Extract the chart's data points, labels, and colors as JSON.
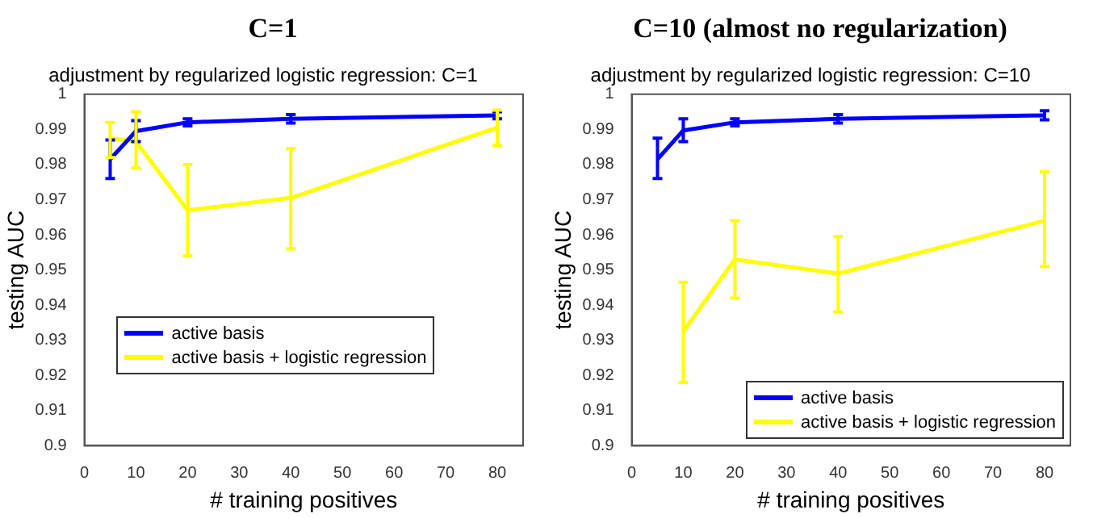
{
  "chart_data": [
    {
      "type": "line",
      "title": "C=1",
      "subtitle": "adjustment by regularized logistic regression: C=1",
      "xlabel": "# training positives",
      "ylabel": "testing AUC",
      "x": [
        5,
        10,
        20,
        40,
        80
      ],
      "xlim": [
        0,
        85
      ],
      "ylim": [
        0.9,
        1
      ],
      "xticks": [
        0,
        10,
        20,
        30,
        40,
        50,
        60,
        70,
        80
      ],
      "yticks": [
        0.9,
        0.91,
        0.92,
        0.93,
        0.94,
        0.95,
        0.96,
        0.97,
        0.98,
        0.99,
        1
      ],
      "grid": false,
      "legend": "bottom left",
      "series": [
        {
          "name": "active basis",
          "color": "#0000ff",
          "values": [
            0.9815,
            0.9895,
            0.992,
            0.993,
            0.994
          ],
          "errors": [
            [
              0.976,
              0.987
            ],
            [
              0.9865,
              0.9925
            ],
            [
              0.991,
              0.993
            ],
            [
              0.9918,
              0.9942
            ],
            [
              0.993,
              0.995
            ]
          ]
        },
        {
          "name": "active basis + logistic regression",
          "color": "#ffff00",
          "values": [
            0.9875,
            0.9865,
            0.967,
            0.9705,
            0.9905
          ],
          "errors": [
            [
              0.982,
              0.992
            ],
            [
              0.979,
              0.995
            ],
            [
              0.954,
              0.98
            ],
            [
              0.956,
              0.9845
            ],
            [
              0.9855,
              0.9955
            ]
          ]
        }
      ]
    },
    {
      "type": "line",
      "title": "C=10 (almost no regularization)",
      "subtitle": "adjustment by regularized logistic regression: C=10",
      "xlabel": "# training positives",
      "ylabel": "testing AUC",
      "x": [
        5,
        10,
        20,
        40,
        80
      ],
      "xlim": [
        0,
        85
      ],
      "ylim": [
        0.9,
        1
      ],
      "xticks": [
        0,
        10,
        20,
        30,
        40,
        50,
        60,
        70,
        80
      ],
      "yticks": [
        0.9,
        0.91,
        0.92,
        0.93,
        0.94,
        0.95,
        0.96,
        0.97,
        0.98,
        0.99,
        1
      ],
      "grid": false,
      "legend": "bottom right",
      "series": [
        {
          "name": "active basis",
          "color": "#0000ff",
          "values": [
            0.9815,
            0.9897,
            0.992,
            0.993,
            0.994
          ],
          "errors": [
            [
              0.976,
              0.9875
            ],
            [
              0.9865,
              0.993
            ],
            [
              0.991,
              0.993
            ],
            [
              0.9918,
              0.9942
            ],
            [
              0.9927,
              0.9953
            ]
          ]
        },
        {
          "name": "active basis + logistic regression",
          "color": "#ffff00",
          "values": [
            null,
            0.9325,
            0.953,
            0.949,
            0.964
          ],
          "errors": [
            null,
            [
              0.918,
              0.9465
            ],
            [
              0.942,
              0.964
            ],
            [
              0.938,
              0.9595
            ],
            [
              0.951,
              0.978
            ]
          ]
        }
      ]
    }
  ]
}
